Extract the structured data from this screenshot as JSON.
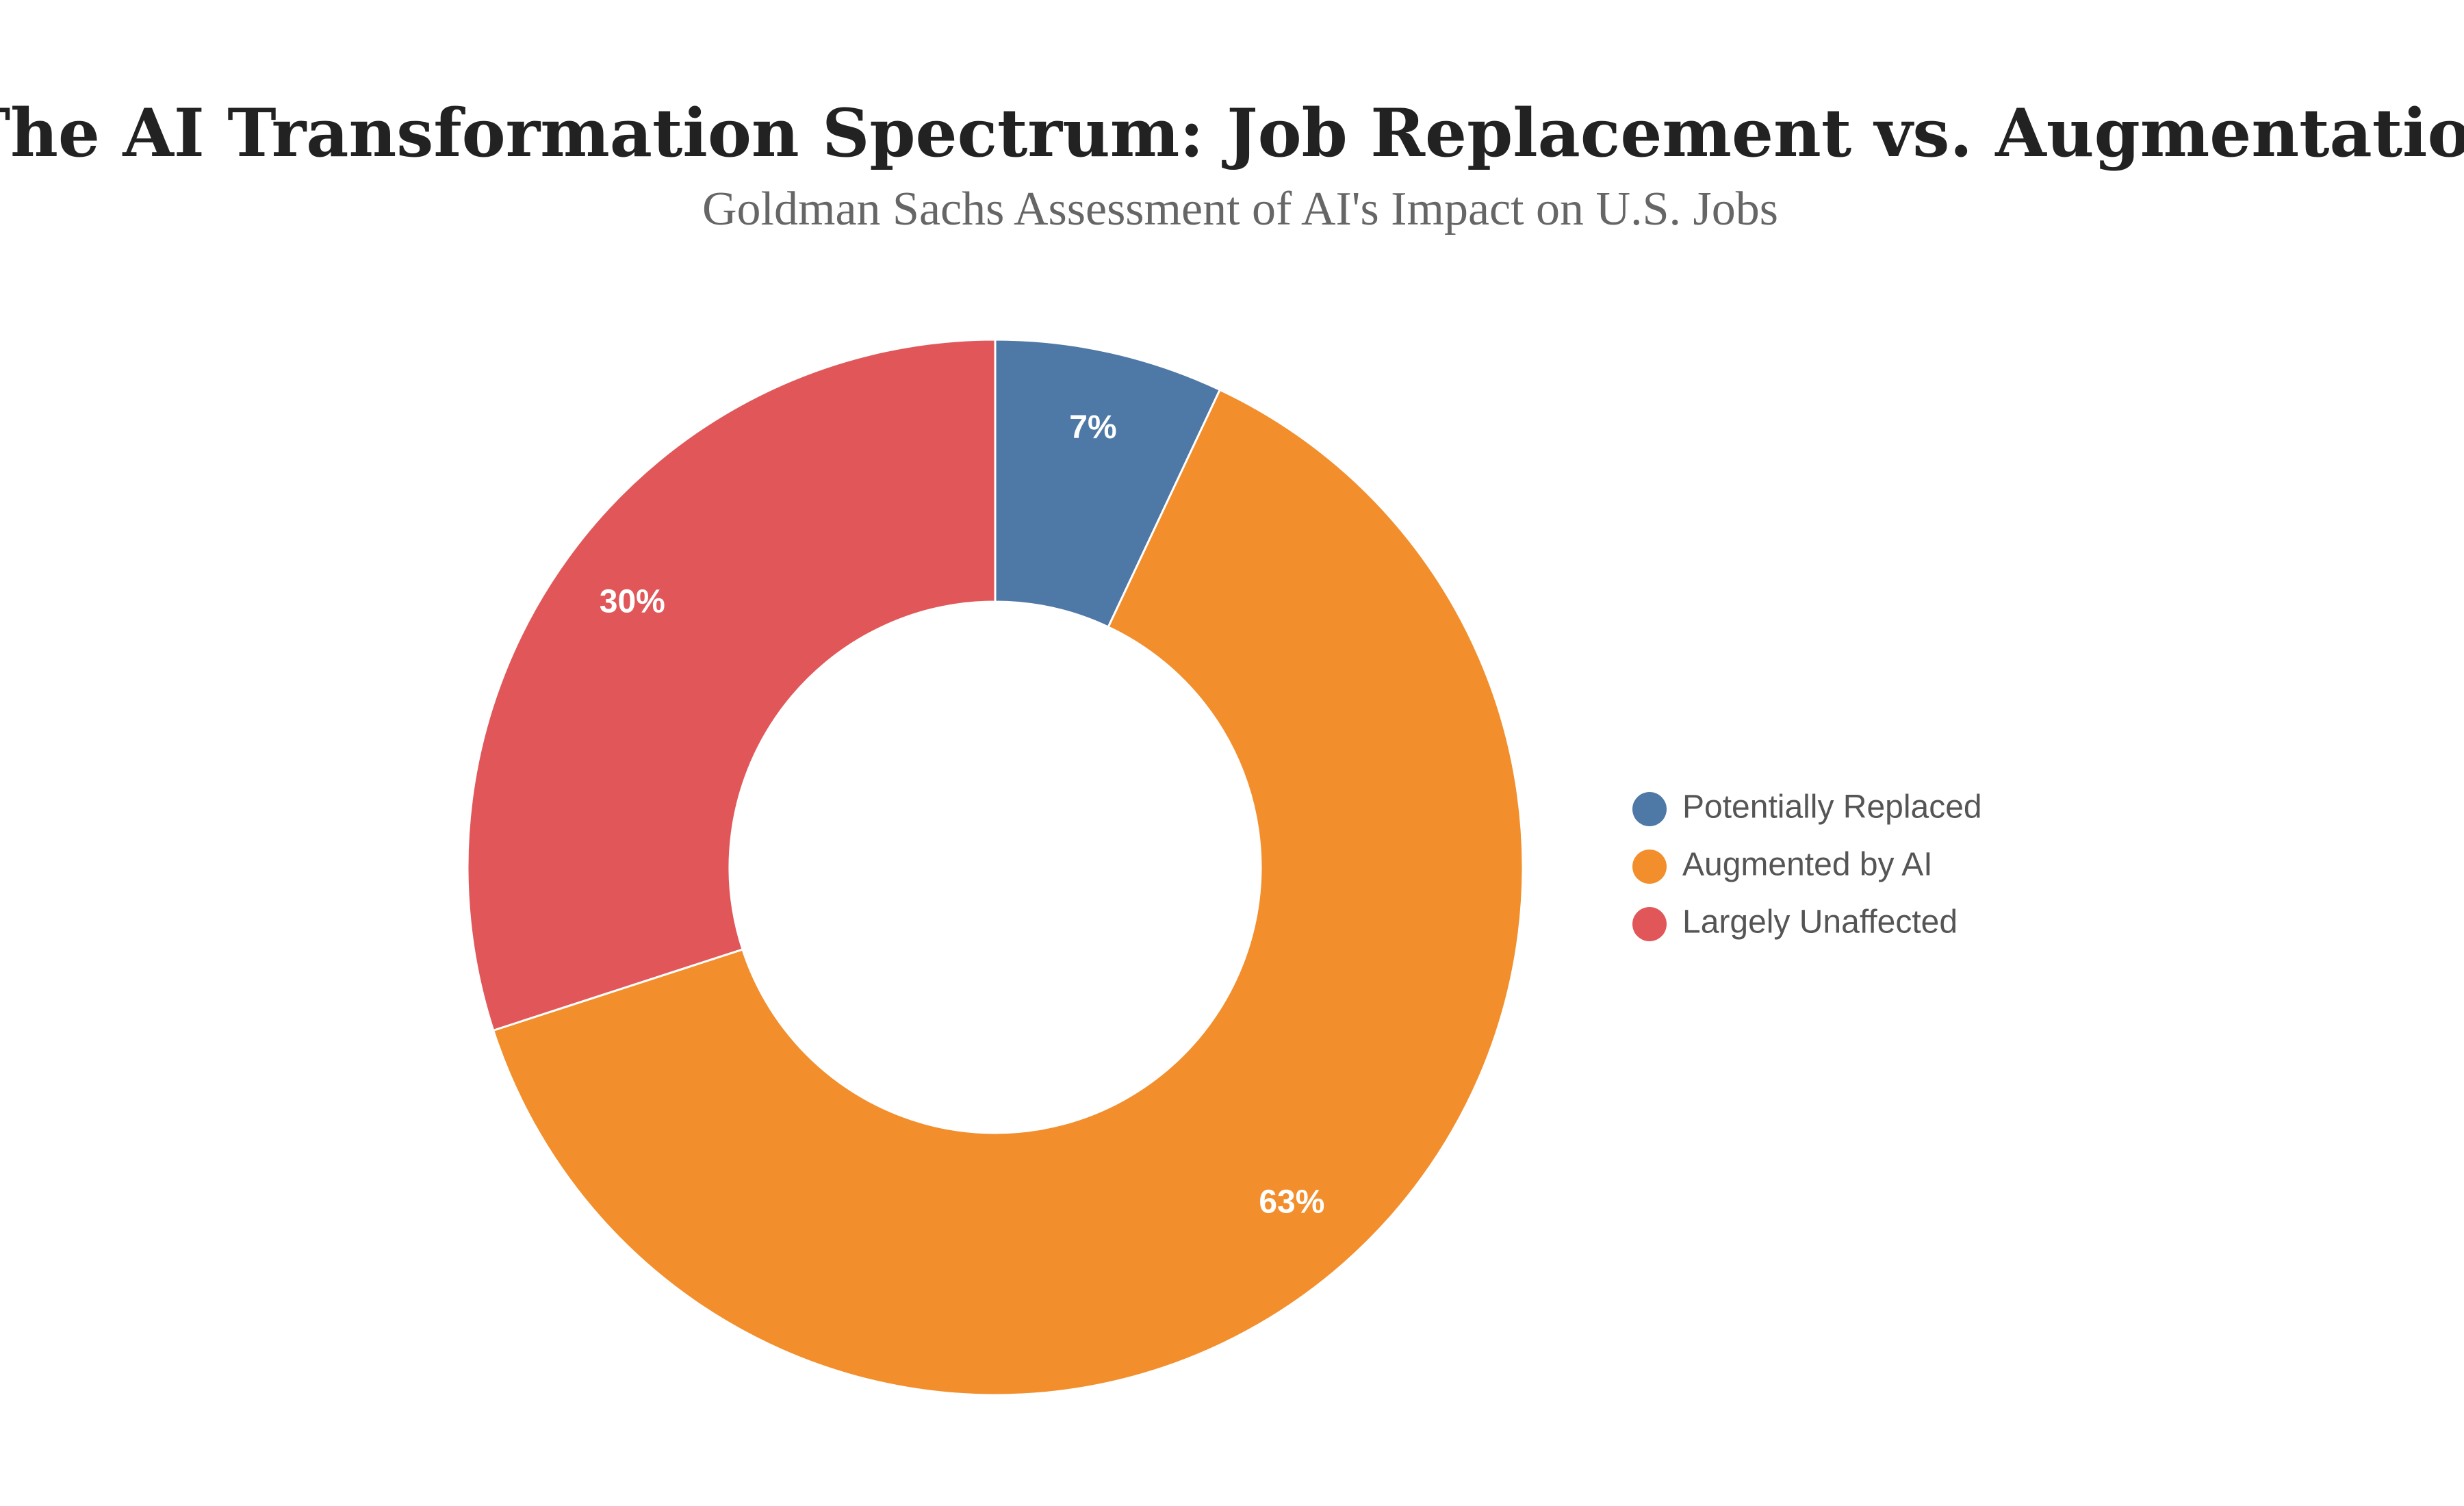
{
  "chart_data": {
    "type": "pie",
    "donut": true,
    "title": "The AI Transformation Spectrum: Job Replacement vs. Augmentation",
    "subtitle": "Goldman Sachs Assessment of AI's Impact on U.S. Jobs",
    "categories": [
      "Potentially Replaced",
      "Augmented by AI",
      "Largely Unaffected"
    ],
    "values": [
      7,
      63,
      30
    ],
    "value_labels": [
      "7%",
      "63%",
      "30%"
    ],
    "colors": [
      "#4e78a6",
      "#f28e2c",
      "#e15759"
    ],
    "legend": "right"
  }
}
